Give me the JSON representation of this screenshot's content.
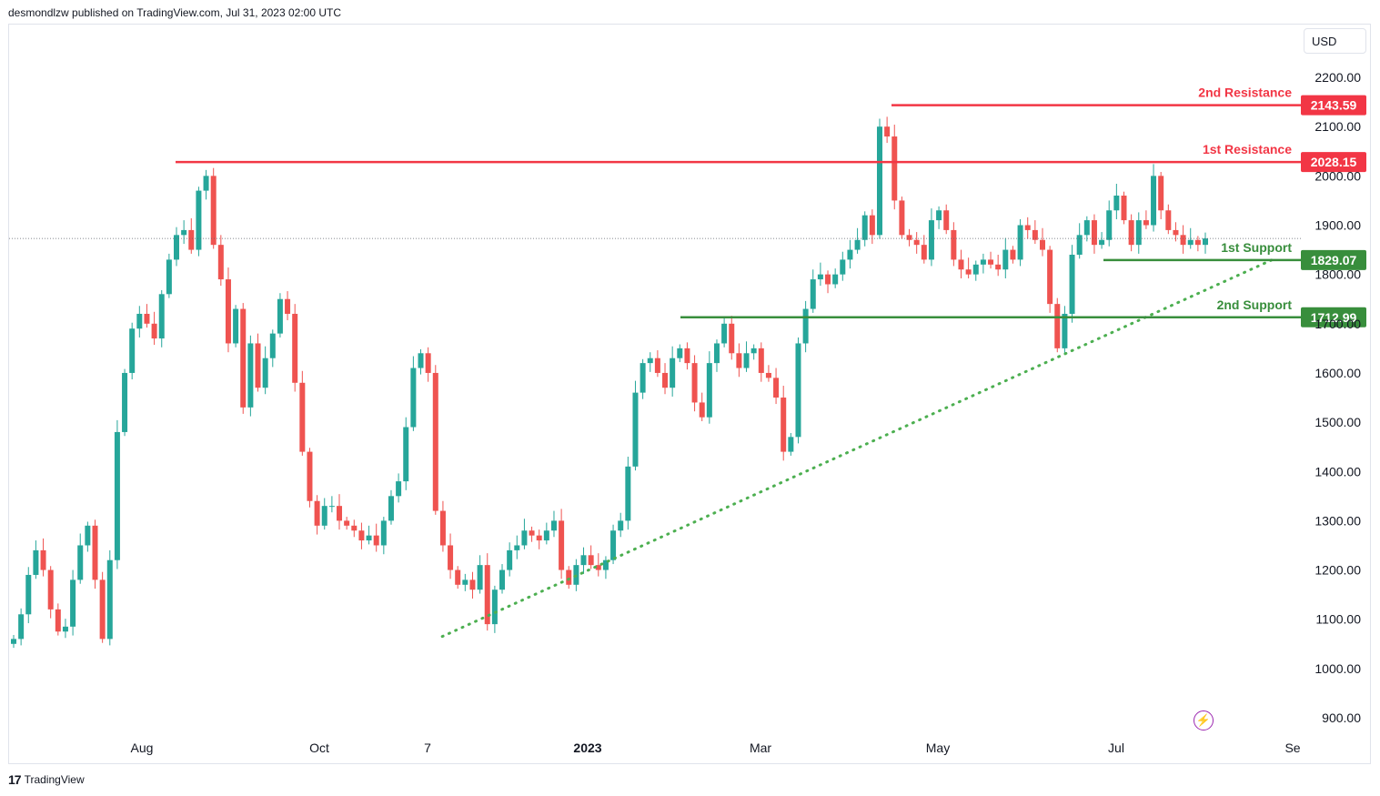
{
  "header": {
    "published": "desmondlzw published on TradingView.com, Jul 31, 2023 02:00 UTC"
  },
  "currency": "USD",
  "footer": {
    "brand": "TradingView",
    "logo_icon": "tradingview-logo-icon"
  },
  "colors": {
    "up": "#26a69a",
    "down": "#ef5350",
    "resistance": "#f23645",
    "support": "#388e3c",
    "trend": "#4caf50"
  },
  "chart_data": {
    "type": "candlestick",
    "title": "",
    "x_ticks": [
      "Aug",
      "Oct",
      "7",
      "2023",
      "Mar",
      "May",
      "Jul",
      "Se"
    ],
    "y_ticks": [
      "2200.00",
      "2100.00",
      "2000.00",
      "1900.00",
      "1800.00",
      "1700.00",
      "1600.00",
      "1500.00",
      "1400.00",
      "1300.00",
      "1200.00",
      "1100.00",
      "1000.00",
      "900.00"
    ],
    "ylim": [
      880,
      2225
    ],
    "current_price": 1873,
    "levels": [
      {
        "name": "2nd Resistance",
        "value": 2143.59,
        "label": "2143.59",
        "kind": "resistance"
      },
      {
        "name": "1st Resistance",
        "value": 2028.15,
        "label": "2028.15",
        "kind": "resistance"
      },
      {
        "name": "1st Support",
        "value": 1829.07,
        "label": "1829.07",
        "kind": "support"
      },
      {
        "name": "2nd Support",
        "value": 1712.99,
        "label": "1712.99",
        "kind": "support"
      }
    ],
    "trendline": {
      "from": {
        "date": "2022-11-22",
        "price": 1065
      },
      "to": {
        "date": "2023-08-25",
        "price": 1830
      }
    },
    "closes": [
      1060,
      1110,
      1190,
      1240,
      1200,
      1120,
      1075,
      1085,
      1180,
      1250,
      1290,
      1180,
      1060,
      1220,
      1480,
      1600,
      1690,
      1720,
      1700,
      1670,
      1760,
      1830,
      1880,
      1890,
      1850,
      1970,
      2000,
      1860,
      1790,
      1660,
      1730,
      1530,
      1660,
      1570,
      1630,
      1680,
      1750,
      1720,
      1580,
      1440,
      1340,
      1290,
      1330,
      1330,
      1300,
      1290,
      1280,
      1260,
      1270,
      1250,
      1300,
      1350,
      1380,
      1490,
      1610,
      1640,
      1600,
      1320,
      1250,
      1200,
      1170,
      1180,
      1160,
      1210,
      1090,
      1160,
      1200,
      1240,
      1250,
      1280,
      1270,
      1260,
      1280,
      1300,
      1200,
      1170,
      1210,
      1230,
      1210,
      1200,
      1220,
      1280,
      1300,
      1410,
      1560,
      1620,
      1630,
      1600,
      1570,
      1630,
      1650,
      1620,
      1540,
      1510,
      1620,
      1660,
      1700,
      1640,
      1610,
      1640,
      1650,
      1600,
      1590,
      1550,
      1440,
      1470,
      1660,
      1730,
      1790,
      1800,
      1780,
      1800,
      1830,
      1850,
      1870,
      1920,
      1880,
      2100,
      2080,
      1950,
      1880,
      1870,
      1860,
      1830,
      1910,
      1930,
      1890,
      1830,
      1810,
      1800,
      1820,
      1830,
      1820,
      1810,
      1850,
      1830,
      1900,
      1890,
      1870,
      1850,
      1740,
      1650,
      1720,
      1840,
      1880,
      1910,
      1860,
      1870,
      1930,
      1960,
      1910,
      1860,
      1910,
      1900,
      2000,
      1930,
      1890,
      1880,
      1860,
      1870,
      1860,
      1873
    ]
  }
}
